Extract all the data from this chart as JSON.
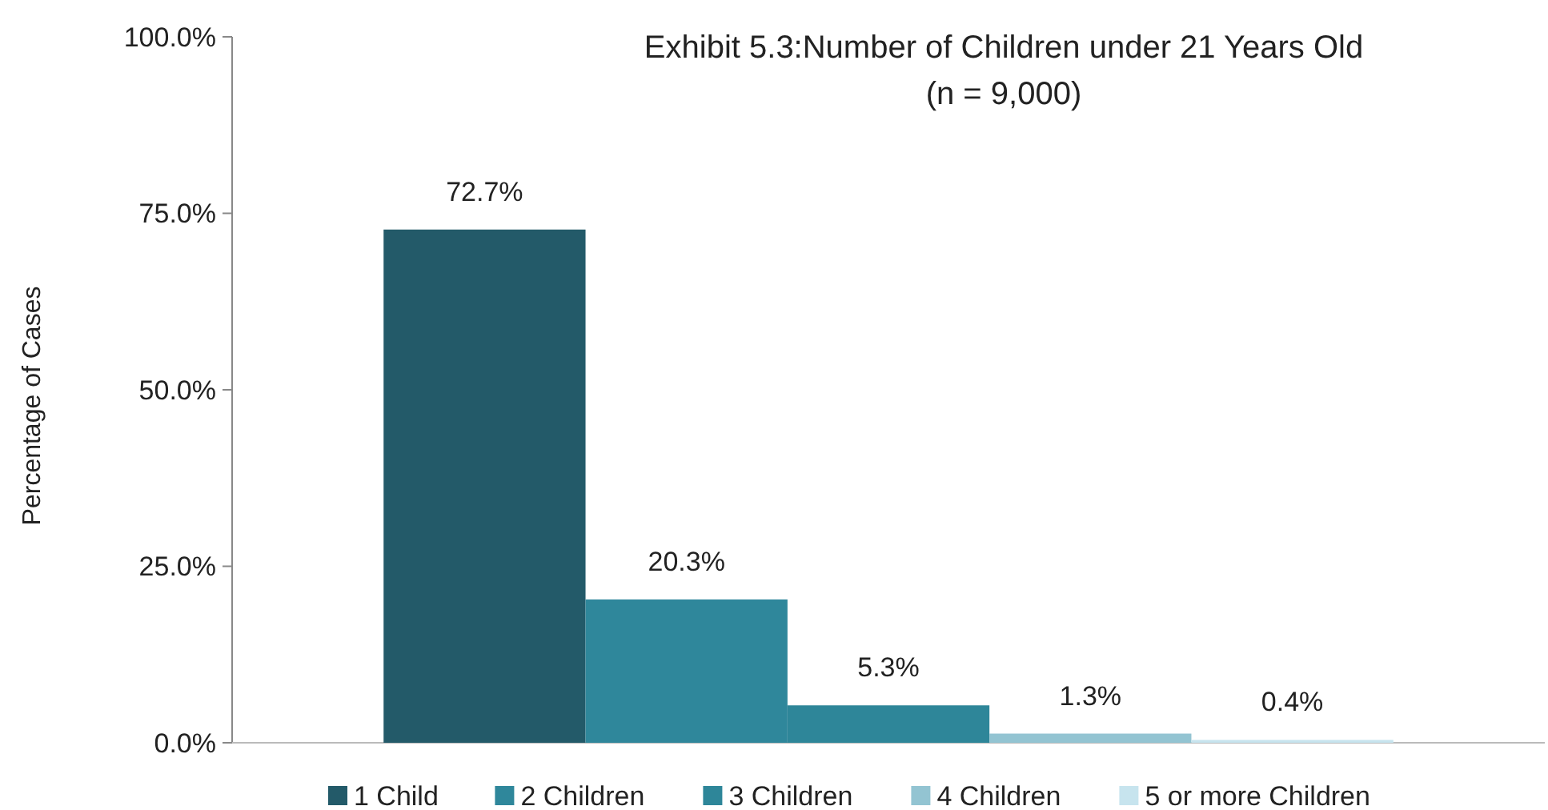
{
  "chart_data": {
    "type": "bar",
    "title": "Exhibit 5.3:Number of Children under 21 Years Old",
    "subtitle": "(n = 9,000)",
    "ylabel": "Percentage of Cases",
    "categories": [
      null
    ],
    "series": [
      {
        "name": "1 Child",
        "color": "#235a69",
        "values": [
          72.7
        ],
        "value_labels": [
          "72.7%"
        ]
      },
      {
        "name": "2 Children",
        "color": "#2f879b",
        "values": [
          20.3
        ],
        "value_labels": [
          "20.3%"
        ]
      },
      {
        "name": "3 Children",
        "color": "#2e8699",
        "values": [
          5.3
        ],
        "value_labels": [
          "5.3%"
        ]
      },
      {
        "name": "4 Children",
        "color": "#93c4d2",
        "values": [
          1.3
        ],
        "value_labels": [
          "1.3%"
        ]
      },
      {
        "name": "5 or more Children",
        "color": "#c7e4ee",
        "values": [
          0.4
        ],
        "value_labels": [
          "0.4%"
        ]
      }
    ],
    "ylim": [
      0,
      100
    ],
    "yticks": [
      {
        "value": 0,
        "label": "0.0%"
      },
      {
        "value": 25,
        "label": "25.0%"
      },
      {
        "value": 50,
        "label": "50.0%"
      },
      {
        "value": 75,
        "label": "75.0%"
      },
      {
        "value": 100,
        "label": "100.0%"
      }
    ],
    "grid": false,
    "legend": "bottom"
  }
}
